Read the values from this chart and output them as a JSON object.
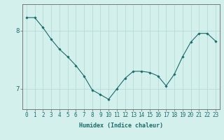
{
  "x": [
    0,
    1,
    2,
    3,
    4,
    5,
    6,
    7,
    8,
    9,
    10,
    11,
    12,
    13,
    14,
    15,
    16,
    17,
    18,
    19,
    20,
    21,
    22,
    23
  ],
  "y": [
    8.22,
    8.22,
    8.05,
    7.85,
    7.68,
    7.55,
    7.4,
    7.22,
    6.98,
    6.9,
    6.82,
    7.0,
    7.18,
    7.3,
    7.3,
    7.28,
    7.22,
    7.05,
    7.25,
    7.55,
    7.8,
    7.95,
    7.95,
    7.82
  ],
  "line_color": "#1a6b6b",
  "marker": "D",
  "marker_size": 1.8,
  "bg_color": "#d4f0ec",
  "grid_color": "#b0d8d4",
  "axis_color": "#666666",
  "xlabel": "Humidex (Indice chaleur)",
  "xlabel_fontsize": 6.0,
  "tick_fontsize": 5.5,
  "ytick_labels": [
    "7",
    "8"
  ],
  "ytick_values": [
    7.0,
    8.0
  ],
  "ylim": [
    6.65,
    8.45
  ],
  "xlim": [
    -0.5,
    23.5
  ]
}
